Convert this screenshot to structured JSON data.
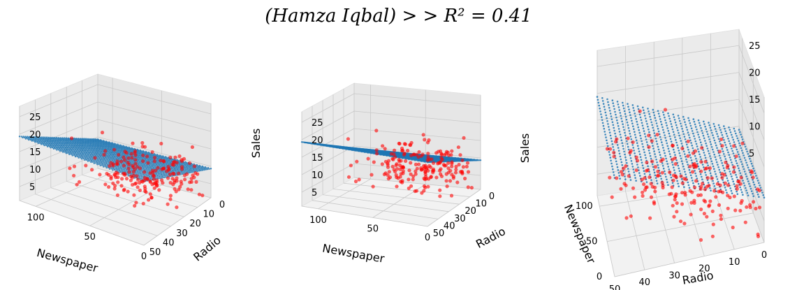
{
  "title": "(Hamza Iqbal) > > R² = 0.41",
  "chart_data": [
    {
      "type": "scatter",
      "title": "",
      "xlabel": "Newspaper",
      "ylabel": "Radio",
      "zlabel": "Sales",
      "x_ticks": [
        "100",
        "50",
        "0"
      ],
      "y_ticks": [
        "0",
        "10",
        "20",
        "30",
        "40",
        "50"
      ],
      "z_ticks": [
        "5",
        "10",
        "15",
        "20",
        "25"
      ],
      "xlim": [
        0,
        115
      ],
      "ylim": [
        0,
        50
      ],
      "zlim": [
        1,
        28
      ],
      "grid": true,
      "plane": {
        "intercept": 9.35,
        "coef_newspaper": 0.0,
        "coef_radio": 0.2,
        "color": "#1f77b4"
      },
      "points_color": "#ff0000"
    },
    {
      "type": "scatter",
      "title": "",
      "xlabel": "Newspaper",
      "ylabel": "Radio",
      "zlabel": "Sales",
      "x_ticks": [
        "100",
        "50",
        "0"
      ],
      "y_ticks": [
        "0",
        "10",
        "20",
        "30",
        "40",
        "50"
      ],
      "z_ticks": [
        "5",
        "10",
        "15",
        "20",
        "25"
      ],
      "xlim": [
        0,
        115
      ],
      "ylim": [
        0,
        50
      ],
      "zlim": [
        1,
        28
      ],
      "grid": true,
      "plane": {
        "intercept": 9.35,
        "coef_newspaper": 0.0,
        "coef_radio": 0.2,
        "color": "#1f77b4"
      },
      "points_color": "#ff0000"
    },
    {
      "type": "scatter",
      "title": "",
      "xlabel": "Newspaper",
      "ylabel": "Radio",
      "zlabel": "",
      "x_ticks": [
        "0",
        "50",
        "100"
      ],
      "y_ticks": [
        "50",
        "40",
        "30",
        "20",
        "10",
        "0"
      ],
      "z_ticks": [
        "5",
        "10",
        "15",
        "20",
        "25"
      ],
      "xlim": [
        0,
        115
      ],
      "ylim": [
        0,
        50
      ],
      "zlim": [
        1,
        28
      ],
      "grid": true,
      "plane": {
        "intercept": 9.35,
        "coef_newspaper": 0.0,
        "coef_radio": 0.2,
        "color": "#1f77b4"
      },
      "points_color": "#ff0000"
    }
  ]
}
